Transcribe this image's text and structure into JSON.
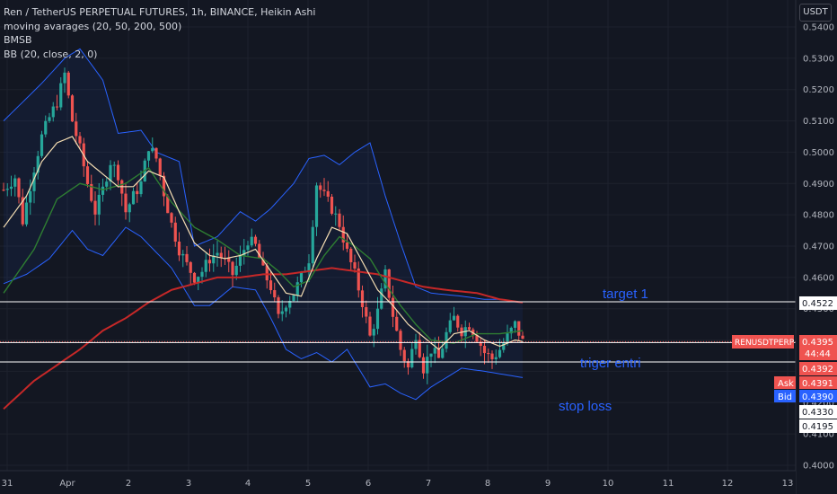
{
  "legend": {
    "line1": "Ren / TetherUS PERPETUAL FUTURES, 1h, BINANCE, Heikin Ashi",
    "line2": "moving avarages (20, 50, 200, 500)",
    "line3": "BMSB",
    "line4": "BB (20, close, 2, 0)"
  },
  "currency": "USDT",
  "colors": {
    "background": "#131722",
    "bull": "#26a69a",
    "bear": "#ef5350",
    "bb": "#2962ff",
    "ma_fast": "#f5deb3",
    "ma_mid": "#2e7d32",
    "ma_slow": "#c62828",
    "annotation": "#2962ff"
  },
  "annotations": {
    "target": "target 1",
    "trigger": "triger entri",
    "stop": "stop loss"
  },
  "price_tags": {
    "symbol": "RENUSDTPERP",
    "current": "0.4395",
    "countdown": "44:44",
    "level_target": "0.4522",
    "level_trigger": "0.4392",
    "ask_label": "Ask",
    "ask": "0.4391",
    "bid_label": "Bid",
    "bid": "0.4390",
    "level_stop": "0.4330",
    "extra": "0.4195"
  },
  "chart_data": {
    "type": "candlestick",
    "style": "Heikin Ashi",
    "timeframe": "1h",
    "y_axis": {
      "min": 0.4,
      "max": 0.545,
      "ticks": [
        "0.5400",
        "0.5300",
        "0.5200",
        "0.5100",
        "0.5000",
        "0.4900",
        "0.4800",
        "0.4700",
        "0.4600",
        "0.4500",
        "0.4400",
        "0.4300",
        "0.4200",
        "0.4100",
        "0.4000"
      ]
    },
    "x_axis": {
      "ticks": [
        "31",
        "Apr",
        "2",
        "3",
        "4",
        "5",
        "6",
        "7",
        "8",
        "9",
        "10",
        "11",
        "12",
        "13"
      ]
    },
    "horizontal_levels": [
      {
        "name": "target 1",
        "price": 0.4522
      },
      {
        "name": "triger entri",
        "price": 0.4392
      },
      {
        "name": "stop loss",
        "price": 0.433
      }
    ],
    "current_price": 0.4395,
    "price_path": [
      [
        0,
        0.488
      ],
      [
        3,
        0.492
      ],
      [
        5,
        0.478
      ],
      [
        8,
        0.495
      ],
      [
        10,
        0.505
      ],
      [
        12,
        0.511
      ],
      [
        14,
        0.516
      ],
      [
        16,
        0.525
      ],
      [
        18,
        0.51
      ],
      [
        20,
        0.501
      ],
      [
        22,
        0.49
      ],
      [
        24,
        0.481
      ],
      [
        26,
        0.488
      ],
      [
        28,
        0.497
      ],
      [
        30,
        0.493
      ],
      [
        32,
        0.481
      ],
      [
        34,
        0.486
      ],
      [
        36,
        0.49
      ],
      [
        38,
        0.502
      ],
      [
        40,
        0.498
      ],
      [
        42,
        0.487
      ],
      [
        44,
        0.477
      ],
      [
        46,
        0.469
      ],
      [
        48,
        0.464
      ],
      [
        50,
        0.46
      ],
      [
        52,
        0.462
      ],
      [
        54,
        0.466
      ],
      [
        56,
        0.468
      ],
      [
        58,
        0.465
      ],
      [
        60,
        0.461
      ],
      [
        62,
        0.466
      ],
      [
        64,
        0.472
      ],
      [
        66,
        0.47
      ],
      [
        68,
        0.462
      ],
      [
        70,
        0.457
      ],
      [
        72,
        0.447
      ],
      [
        74,
        0.452
      ],
      [
        76,
        0.455
      ],
      [
        78,
        0.46
      ],
      [
        80,
        0.466
      ],
      [
        82,
        0.49
      ],
      [
        84,
        0.486
      ],
      [
        86,
        0.482
      ],
      [
        88,
        0.477
      ],
      [
        90,
        0.468
      ],
      [
        92,
        0.461
      ],
      [
        94,
        0.452
      ],
      [
        96,
        0.441
      ],
      [
        98,
        0.449
      ],
      [
        100,
        0.461
      ],
      [
        102,
        0.448
      ],
      [
        104,
        0.437
      ],
      [
        106,
        0.431
      ],
      [
        108,
        0.442
      ],
      [
        110,
        0.431
      ],
      [
        112,
        0.437
      ],
      [
        114,
        0.434
      ],
      [
        116,
        0.442
      ],
      [
        118,
        0.447
      ],
      [
        120,
        0.443
      ],
      [
        122,
        0.445
      ],
      [
        124,
        0.441
      ],
      [
        126,
        0.436
      ],
      [
        128,
        0.434
      ],
      [
        130,
        0.437
      ],
      [
        132,
        0.441
      ],
      [
        134,
        0.445
      ],
      [
        136,
        0.4395
      ]
    ],
    "bb_upper": [
      [
        0,
        0.51
      ],
      [
        10,
        0.522
      ],
      [
        16,
        0.53
      ],
      [
        20,
        0.533
      ],
      [
        26,
        0.523
      ],
      [
        30,
        0.506
      ],
      [
        36,
        0.507
      ],
      [
        40,
        0.5
      ],
      [
        46,
        0.497
      ],
      [
        50,
        0.47
      ],
      [
        56,
        0.473
      ],
      [
        62,
        0.481
      ],
      [
        66,
        0.478
      ],
      [
        70,
        0.482
      ],
      [
        76,
        0.49
      ],
      [
        80,
        0.498
      ],
      [
        84,
        0.499
      ],
      [
        88,
        0.496
      ],
      [
        92,
        0.5
      ],
      [
        96,
        0.503
      ],
      [
        100,
        0.486
      ],
      [
        104,
        0.471
      ],
      [
        108,
        0.457
      ],
      [
        112,
        0.455
      ],
      [
        120,
        0.454
      ],
      [
        126,
        0.453
      ],
      [
        130,
        0.453
      ],
      [
        136,
        0.452
      ]
    ],
    "bb_lower": [
      [
        0,
        0.458
      ],
      [
        6,
        0.461
      ],
      [
        12,
        0.466
      ],
      [
        18,
        0.475
      ],
      [
        22,
        0.469
      ],
      [
        26,
        0.467
      ],
      [
        32,
        0.476
      ],
      [
        36,
        0.473
      ],
      [
        40,
        0.468
      ],
      [
        44,
        0.463
      ],
      [
        50,
        0.451
      ],
      [
        54,
        0.451
      ],
      [
        60,
        0.457
      ],
      [
        66,
        0.456
      ],
      [
        70,
        0.447
      ],
      [
        74,
        0.437
      ],
      [
        78,
        0.434
      ],
      [
        82,
        0.436
      ],
      [
        86,
        0.433
      ],
      [
        90,
        0.437
      ],
      [
        96,
        0.425
      ],
      [
        100,
        0.426
      ],
      [
        104,
        0.423
      ],
      [
        108,
        0.421
      ],
      [
        112,
        0.425
      ],
      [
        116,
        0.428
      ],
      [
        120,
        0.431
      ],
      [
        126,
        0.43
      ],
      [
        136,
        0.428
      ]
    ],
    "ma_fast": [
      [
        0,
        0.476
      ],
      [
        6,
        0.486
      ],
      [
        10,
        0.497
      ],
      [
        14,
        0.503
      ],
      [
        18,
        0.505
      ],
      [
        22,
        0.497
      ],
      [
        26,
        0.493
      ],
      [
        30,
        0.489
      ],
      [
        34,
        0.489
      ],
      [
        38,
        0.494
      ],
      [
        42,
        0.492
      ],
      [
        46,
        0.481
      ],
      [
        50,
        0.471
      ],
      [
        54,
        0.467
      ],
      [
        58,
        0.466
      ],
      [
        62,
        0.467
      ],
      [
        66,
        0.469
      ],
      [
        70,
        0.462
      ],
      [
        74,
        0.455
      ],
      [
        78,
        0.454
      ],
      [
        82,
        0.466
      ],
      [
        86,
        0.476
      ],
      [
        90,
        0.474
      ],
      [
        94,
        0.465
      ],
      [
        98,
        0.456
      ],
      [
        102,
        0.451
      ],
      [
        106,
        0.445
      ],
      [
        110,
        0.441
      ],
      [
        114,
        0.437
      ],
      [
        118,
        0.442
      ],
      [
        122,
        0.443
      ],
      [
        126,
        0.44
      ],
      [
        130,
        0.438
      ],
      [
        134,
        0.44
      ],
      [
        136,
        0.4395
      ]
    ],
    "ma_mid": [
      [
        0,
        0.455
      ],
      [
        8,
        0.469
      ],
      [
        14,
        0.485
      ],
      [
        20,
        0.49
      ],
      [
        26,
        0.488
      ],
      [
        32,
        0.49
      ],
      [
        38,
        0.495
      ],
      [
        44,
        0.484
      ],
      [
        50,
        0.476
      ],
      [
        56,
        0.472
      ],
      [
        62,
        0.467
      ],
      [
        68,
        0.466
      ],
      [
        72,
        0.462
      ],
      [
        76,
        0.457
      ],
      [
        80,
        0.459
      ],
      [
        84,
        0.467
      ],
      [
        88,
        0.473
      ],
      [
        92,
        0.47
      ],
      [
        96,
        0.466
      ],
      [
        100,
        0.458
      ],
      [
        104,
        0.451
      ],
      [
        108,
        0.445
      ],
      [
        112,
        0.44
      ],
      [
        118,
        0.439
      ],
      [
        124,
        0.442
      ],
      [
        130,
        0.442
      ],
      [
        136,
        0.443
      ]
    ],
    "ma_slow": [
      [
        0,
        0.418
      ],
      [
        8,
        0.427
      ],
      [
        14,
        0.432
      ],
      [
        20,
        0.437
      ],
      [
        26,
        0.443
      ],
      [
        32,
        0.447
      ],
      [
        38,
        0.452
      ],
      [
        44,
        0.456
      ],
      [
        50,
        0.458
      ],
      [
        56,
        0.46
      ],
      [
        62,
        0.46
      ],
      [
        68,
        0.461
      ],
      [
        74,
        0.461
      ],
      [
        80,
        0.462
      ],
      [
        86,
        0.463
      ],
      [
        92,
        0.462
      ],
      [
        98,
        0.461
      ],
      [
        104,
        0.459
      ],
      [
        110,
        0.457
      ],
      [
        116,
        0.456
      ],
      [
        124,
        0.455
      ],
      [
        130,
        0.453
      ],
      [
        136,
        0.452
      ]
    ]
  }
}
